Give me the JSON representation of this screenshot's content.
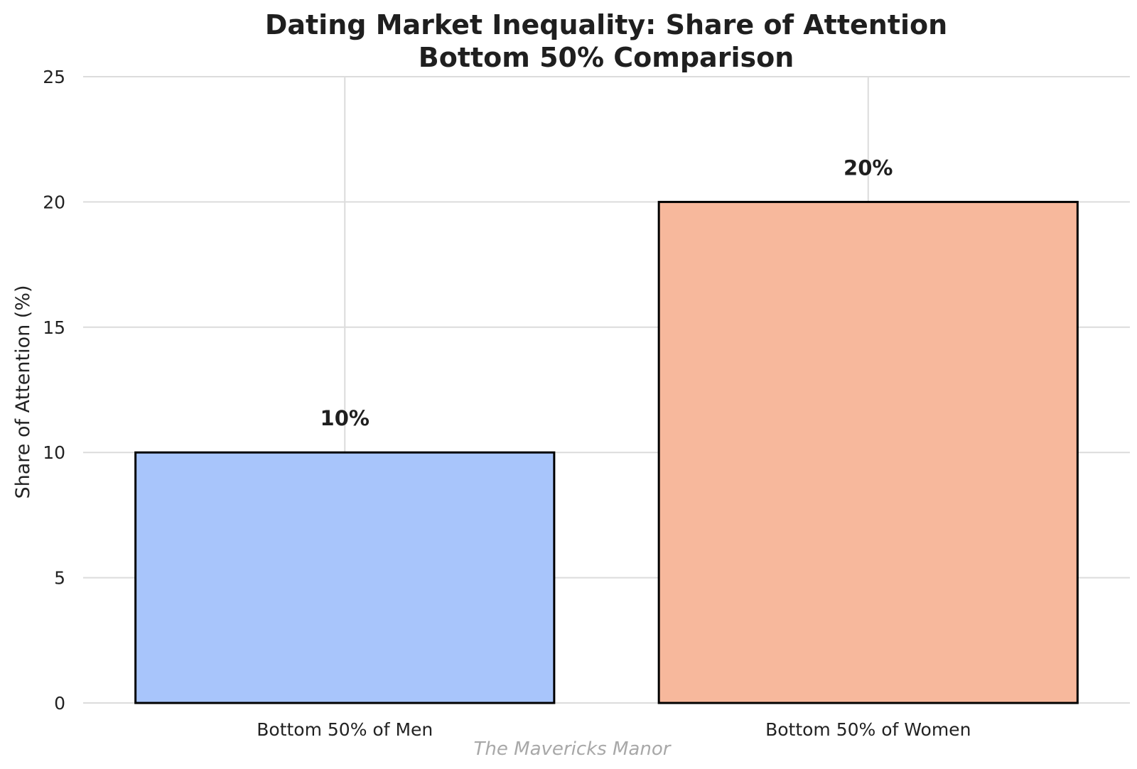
{
  "chart_data": {
    "type": "bar",
    "title_lines": [
      "Dating Market Inequality: Share of Attention",
      "Bottom 50% Comparison"
    ],
    "categories": [
      "Bottom 50% of Men",
      "Bottom 50% of Women"
    ],
    "values": [
      10,
      20
    ],
    "value_labels": [
      "10%",
      "20%"
    ],
    "colors": [
      "#a8c5fb",
      "#f7b89c"
    ],
    "xlabel": "",
    "ylabel": "Share of Attention (%)",
    "ylim": [
      0,
      25
    ],
    "yticks": [
      0,
      5,
      10,
      15,
      20,
      25
    ],
    "ytick_labels": [
      "0",
      "5",
      "10",
      "15",
      "20",
      "25"
    ],
    "grid": true,
    "watermark": "The Mavericks Manor"
  }
}
